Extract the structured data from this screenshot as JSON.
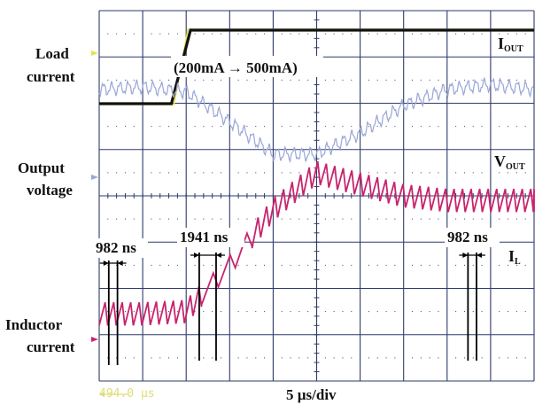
{
  "chart_data": {
    "type": "line",
    "time_scale": "5 µs/div",
    "cursor_readout": "494.0 µs",
    "grid": "on",
    "divisions": {
      "x": 10,
      "y": 8
    },
    "left_labels": {
      "load": [
        "Load",
        "current"
      ],
      "output": [
        "Output",
        "voltage"
      ],
      "inductor": [
        "Inductor",
        "current"
      ]
    },
    "annotations": {
      "load_step": "(200mA → 500mA)",
      "iout": {
        "main": "I",
        "sub": "OUT"
      },
      "vout": {
        "main": "V",
        "sub": "OUT"
      },
      "il": {
        "main": "I",
        "sub": "L"
      },
      "periods": [
        {
          "label": "982 ns"
        },
        {
          "label": "1941 ns"
        },
        {
          "label": "982 ns"
        }
      ]
    },
    "series": [
      {
        "trace": "load current",
        "units": "mA",
        "color": "#111111",
        "t_us": [
          -25,
          -16.7,
          -14.5,
          25
        ],
        "values": [
          200,
          200,
          500,
          500
        ]
      },
      {
        "trace": "output voltage",
        "color": "#9aa6d6",
        "t_us": [
          -25,
          -20,
          -15,
          -10,
          -5,
          0,
          5,
          10,
          15,
          20,
          25
        ],
        "values_div": [
          2.3,
          2.35,
          2.25,
          1.6,
          0.9,
          0.9,
          1.35,
          1.95,
          2.3,
          2.4,
          2.3
        ]
      },
      {
        "trace": "inductor current",
        "color": "#c8246e",
        "t_us": [
          -25,
          -20,
          -15,
          -10,
          -5,
          0,
          5,
          10,
          15,
          20,
          25
        ],
        "values_div": [
          -2.55,
          -2.55,
          -2.5,
          -1.5,
          -0.3,
          0.5,
          0.25,
          0.0,
          -0.1,
          -0.1,
          -0.1
        ]
      }
    ]
  },
  "colors": {
    "grid": "#2e3a6a",
    "load_trace": "#111111",
    "ch1_trace": "#e8e24a",
    "vout_trace": "#9aa6d6",
    "il_trace": "#c8246e",
    "markers": "#000000",
    "readout": "#e0dc78"
  }
}
